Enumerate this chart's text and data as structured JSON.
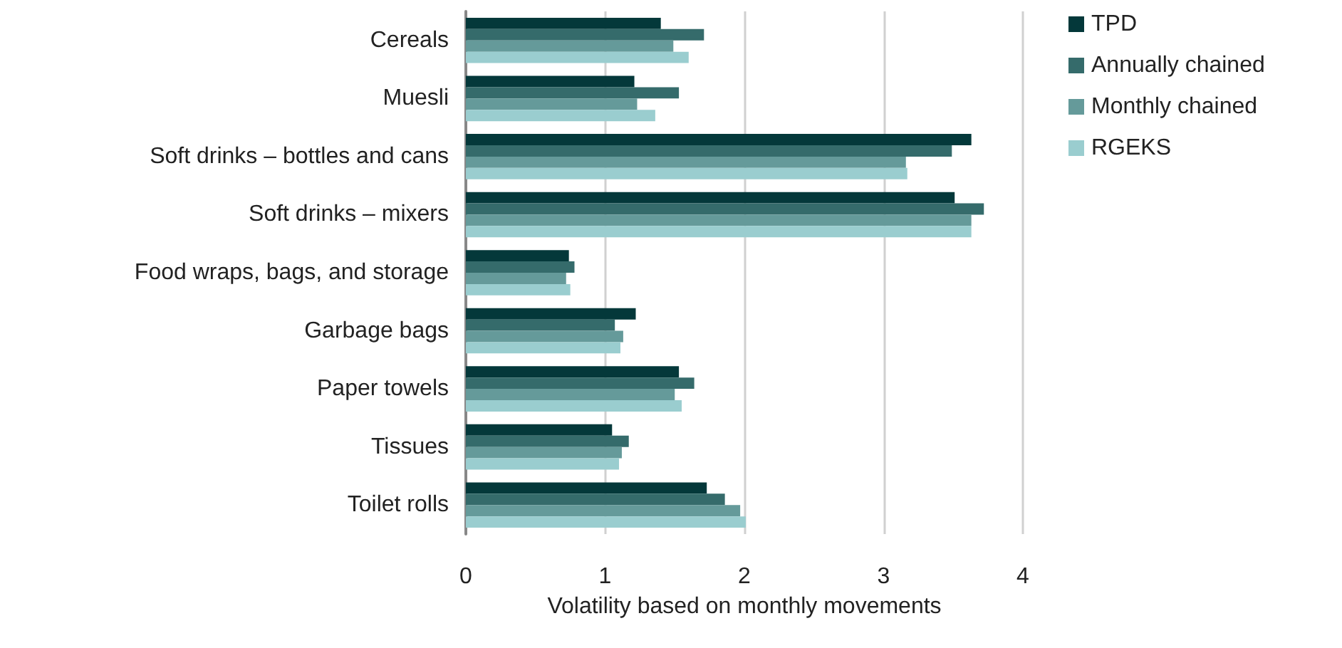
{
  "chart_data": {
    "type": "bar",
    "orientation": "horizontal",
    "xlabel": "Volatility based on monthly movements",
    "categories": [
      "Cereals",
      "Muesli",
      "Soft drinks – bottles and cans",
      "Soft drinks – mixers",
      "Food wraps, bags, and storage",
      "Garbage bags",
      "Paper towels",
      "Tissues",
      "Toilet rolls"
    ],
    "series": [
      {
        "name": "TPD",
        "color": "#04383a",
        "values": [
          1.4,
          1.21,
          3.63,
          3.51,
          0.74,
          1.22,
          1.53,
          1.05,
          1.73
        ]
      },
      {
        "name": "Annually chained",
        "color": "#356b6b",
        "values": [
          1.71,
          1.53,
          3.49,
          3.72,
          0.78,
          1.07,
          1.64,
          1.17,
          1.86
        ]
      },
      {
        "name": "Monthly chained",
        "color": "#659a9a",
        "values": [
          1.49,
          1.23,
          3.16,
          3.63,
          0.72,
          1.13,
          1.5,
          1.12,
          1.97
        ]
      },
      {
        "name": "RGEKS",
        "color": "#9acdcf",
        "values": [
          1.6,
          1.36,
          3.17,
          3.63,
          0.75,
          1.11,
          1.55,
          1.1,
          2.01
        ]
      }
    ],
    "xlim": [
      0,
      4
    ],
    "xticks": [
      0,
      1,
      2,
      3,
      4
    ],
    "grid": "x",
    "legend": "top right"
  }
}
